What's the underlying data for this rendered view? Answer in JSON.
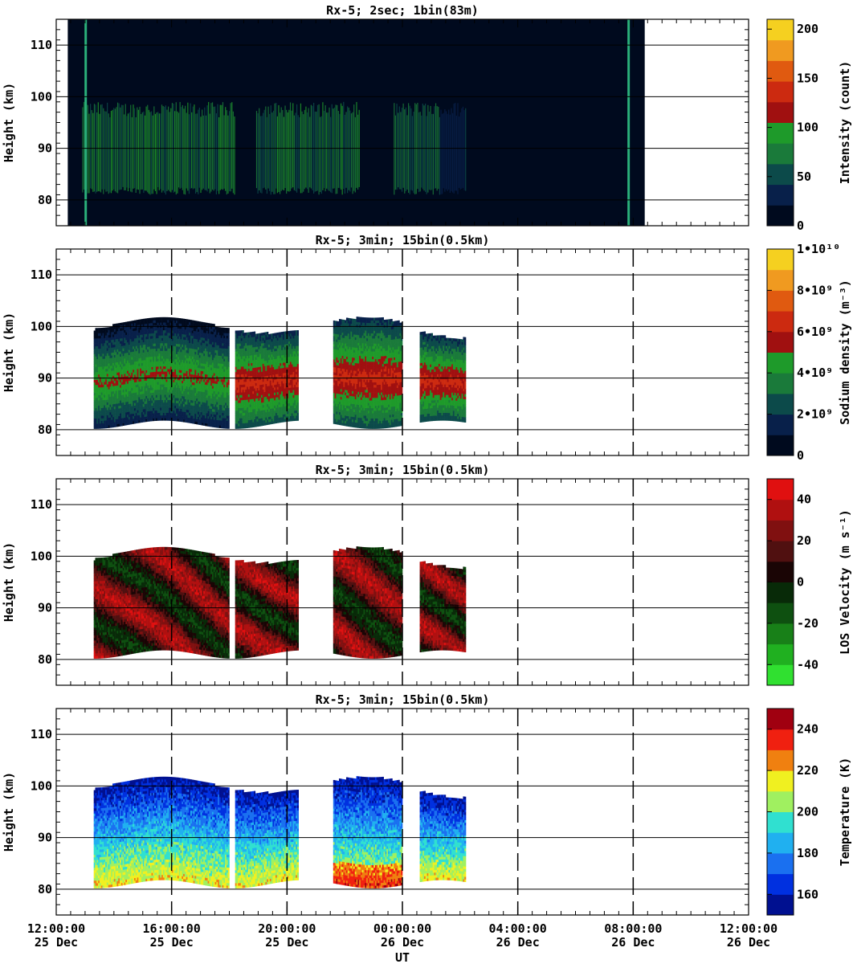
{
  "chart_data": [
    {
      "type": "heatmap",
      "title": "Rx-5;  2sec; 1bin(83m)",
      "ylabel": "Height (km)",
      "ylim": [
        75,
        115
      ],
      "yticks": [
        "80",
        "90",
        "100",
        "110"
      ],
      "colorbar": {
        "label": "Intensity (count)",
        "range": [
          0,
          210
        ],
        "ticks": [
          "0",
          "50",
          "100",
          "150",
          "200"
        ],
        "colors": [
          "#000a1e",
          "#08204a",
          "#0c4a4a",
          "#1a7a3a",
          "#1e9a2a",
          "#a01010",
          "#cc2a10",
          "#e05a10",
          "#f09a20",
          "#f5d020"
        ]
      },
      "grid": true,
      "data_extent_ut_hours": [
        12.4,
        32.4
      ],
      "layer_km": [
        80,
        98
      ]
    },
    {
      "type": "heatmap",
      "title": "Rx-5; 3min; 15bin(0.5km)",
      "ylabel": "Height (km)",
      "ylim": [
        75,
        115
      ],
      "yticks": [
        "80",
        "90",
        "100",
        "110"
      ],
      "colorbar": {
        "label": "Sodium density (m⁻³)",
        "range": [
          0,
          10000000000.0
        ],
        "ticks": [
          "0",
          "2•10⁹",
          "4•10⁹",
          "6•10⁹",
          "8•10⁹",
          "1•10¹⁰"
        ],
        "colors": [
          "#000a1e",
          "#08204a",
          "#0c4a4a",
          "#1a7a3a",
          "#1e9a2a",
          "#a01010",
          "#cc2a10",
          "#e05a10",
          "#f09a20",
          "#f5d020"
        ]
      },
      "grid": true,
      "data_extent_ut_hours": [
        13.3,
        26.2
      ],
      "layer_km": [
        80,
        102
      ]
    },
    {
      "type": "heatmap",
      "title": "Rx-5; 3min; 15bin(0.5km)",
      "ylabel": "Height (km)",
      "ylim": [
        75,
        115
      ],
      "yticks": [
        "80",
        "90",
        "100",
        "110"
      ],
      "colorbar": {
        "label": "LOS Velocity (m s⁻¹)",
        "range": [
          -50,
          50
        ],
        "ticks": [
          "-40",
          "-20",
          "0",
          "20",
          "40"
        ],
        "colors": [
          "#30e030",
          "#20b020",
          "#188018",
          "#0e5010",
          "#082a08",
          "#1a0505",
          "#501010",
          "#801010",
          "#b01010",
          "#e01010"
        ]
      },
      "grid": true,
      "data_extent_ut_hours": [
        13.3,
        26.2
      ],
      "layer_km": [
        80,
        102
      ]
    },
    {
      "type": "heatmap",
      "title": "Rx-5; 3min; 15bin(0.5km)",
      "ylabel": "Height (km)",
      "ylim": [
        75,
        115
      ],
      "yticks": [
        "80",
        "90",
        "100",
        "110"
      ],
      "colorbar": {
        "label": "Temperature (K)",
        "range": [
          150,
          250
        ],
        "ticks": [
          "160",
          "180",
          "200",
          "220",
          "240"
        ],
        "colors": [
          "#001090",
          "#0030e0",
          "#1a70f0",
          "#20b0f0",
          "#30e0d0",
          "#a0f060",
          "#f0f020",
          "#f08010",
          "#f02010",
          "#a00010"
        ]
      },
      "grid": true,
      "data_extent_ut_hours": [
        13.3,
        26.2
      ],
      "layer_km": [
        80,
        102
      ]
    }
  ],
  "xaxis": {
    "label": "UT",
    "range_ut_hours": [
      12,
      36
    ],
    "ticks": [
      {
        "time": "12:00:00",
        "date": "25 Dec"
      },
      {
        "time": "16:00:00",
        "date": "25 Dec"
      },
      {
        "time": "20:00:00",
        "date": "25 Dec"
      },
      {
        "time": "00:00:00",
        "date": "26 Dec"
      },
      {
        "time": "04:00:00",
        "date": "26 Dec"
      },
      {
        "time": "08:00:00",
        "date": "26 Dec"
      },
      {
        "time": "12:00:00",
        "date": "26 Dec"
      }
    ]
  }
}
